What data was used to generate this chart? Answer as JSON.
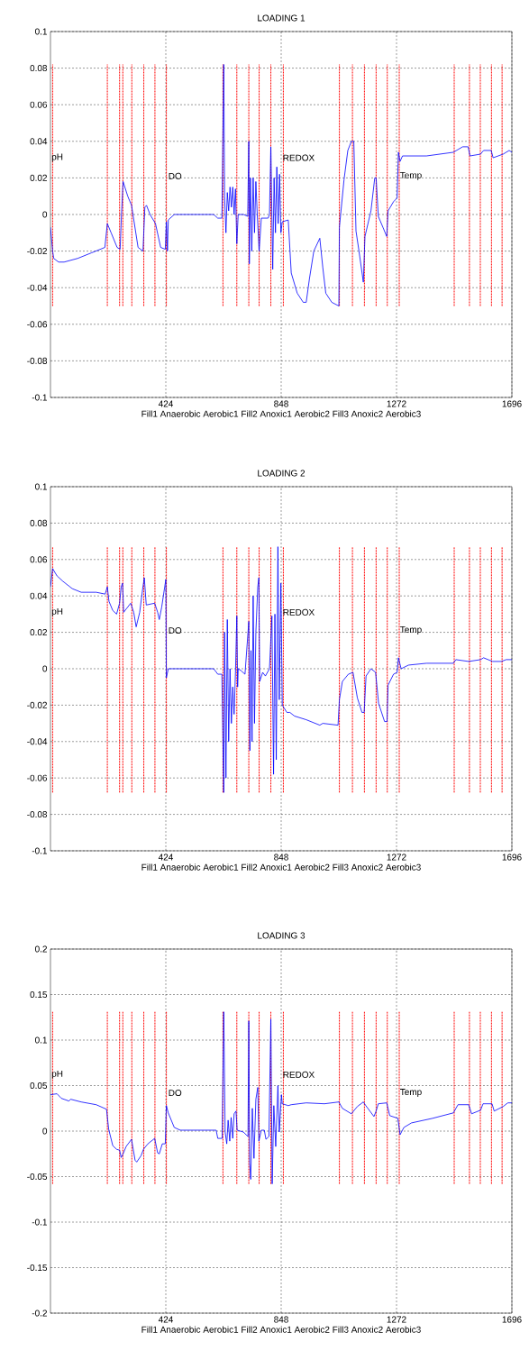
{
  "chart_data": [
    {
      "type": "line",
      "title": "LOADING 1",
      "xlabel": "Fill1 Anaerobic Aerobic1 Fill2 Anoxic1 Aerobic2 Fill3 Anoxic2 Aerobic3",
      "xlim": [
        0,
        1696
      ],
      "xticks": [
        424,
        848,
        1272,
        1696
      ],
      "ylim": [
        -0.1,
        0.1
      ],
      "yticks": [
        -0.1,
        -0.08,
        -0.06,
        -0.04,
        -0.02,
        0,
        0.02,
        0.04,
        0.06,
        0.08,
        0.1
      ],
      "grid": true,
      "series": [
        {
          "color": "#0000ff",
          "line_style": "solid",
          "x": [
            0,
            8,
            12,
            30,
            50,
            100,
            150,
            200,
            209,
            223,
            245,
            256,
            261,
            267,
            284,
            298,
            322,
            340,
            347,
            353,
            366,
            386,
            405,
            422,
            426,
            430,
            433,
            455,
            600,
            615,
            630,
            637,
            640,
            645,
            650,
            655,
            660,
            665,
            670,
            675,
            680,
            685,
            690,
            710,
            725,
            729,
            731,
            735,
            740,
            745,
            750,
            755,
            760,
            767,
            775,
            800,
            805,
            810,
            817,
            822,
            827,
            832,
            837,
            842,
            847,
            852,
            874,
            885,
            907,
            929,
            940,
            952,
            968,
            990,
            1001,
            1012,
            1034,
            1060,
            1062,
            1079,
            1093,
            1106,
            1115,
            1123,
            1134,
            1150,
            1156,
            1178,
            1192,
            1197,
            1205,
            1222,
            1236,
            1241,
            1261,
            1274,
            1279,
            1285,
            1294,
            1382,
            1481,
            1515,
            1535,
            1542,
            1581,
            1592,
            1620,
            1627,
            1664,
            1686,
            1696
          ],
          "values": [
            -0.007,
            -0.02,
            -0.024,
            -0.026,
            -0.026,
            -0.024,
            -0.021,
            -0.018,
            -0.005,
            -0.01,
            -0.018,
            -0.019,
            0,
            0.018,
            0.01,
            0.005,
            -0.018,
            -0.02,
            0.004,
            0.005,
            0,
            -0.005,
            -0.018,
            -0.019,
            -0.004,
            -0.02,
            -0.003,
            0,
            0,
            -0.002,
            -0.002,
            0.082,
            0.01,
            -0.01,
            0.012,
            0.002,
            0.015,
            0.004,
            0.015,
            0,
            0.014,
            -0.016,
            0,
            0,
            -0.001,
            0.04,
            -0.027,
            0.02,
            -0.02,
            0.02,
            -0.01,
            0.018,
            0,
            -0.02,
            -0.002,
            -0.002,
            0,
            0.037,
            -0.03,
            0.02,
            -0.01,
            0.026,
            -0.005,
            0.022,
            -0.01,
            -0.004,
            -0.003,
            -0.032,
            -0.043,
            -0.048,
            -0.048,
            -0.035,
            -0.02,
            -0.013,
            -0.029,
            -0.043,
            -0.048,
            -0.05,
            -0.007,
            0.019,
            0.035,
            0.04,
            0.04,
            -0.009,
            -0.02,
            -0.037,
            -0.012,
            0.002,
            0.02,
            0.02,
            -0.001,
            -0.007,
            -0.012,
            0.002,
            0.007,
            0.009,
            0.034,
            0.029,
            0.032,
            0.032,
            0.034,
            0.037,
            0.037,
            0.032,
            0.033,
            0.035,
            0.035,
            0.031,
            0.033,
            0.035,
            0.034
          ]
        }
      ],
      "ref_lines": [
        {
          "axis": "x",
          "value": 8,
          "color": "#ff0000",
          "line_style": "dotted"
        },
        {
          "axis": "x",
          "value": 209,
          "color": "#ff0000",
          "line_style": "dotted"
        },
        {
          "axis": "x",
          "value": 254,
          "color": "#ff0000",
          "line_style": "dotted"
        },
        {
          "axis": "x",
          "value": 266,
          "color": "#ff0000",
          "line_style": "dotted"
        },
        {
          "axis": "x",
          "value": 299,
          "color": "#ff0000",
          "line_style": "dotted"
        },
        {
          "axis": "x",
          "value": 343,
          "color": "#ff0000",
          "line_style": "dotted"
        },
        {
          "axis": "x",
          "value": 384,
          "color": "#ff0000",
          "line_style": "dotted"
        },
        {
          "axis": "x",
          "value": 426,
          "color": "#ff0000",
          "line_style": "dotted"
        },
        {
          "axis": "x",
          "value": 634,
          "color": "#ff0000",
          "line_style": "dotted"
        },
        {
          "axis": "x",
          "value": 685,
          "color": "#ff0000",
          "line_style": "dotted"
        },
        {
          "axis": "x",
          "value": 729,
          "color": "#ff0000",
          "line_style": "dotted"
        },
        {
          "axis": "x",
          "value": 767,
          "color": "#ff0000",
          "line_style": "dotted"
        },
        {
          "axis": "x",
          "value": 810,
          "color": "#ff0000",
          "line_style": "dotted"
        },
        {
          "axis": "x",
          "value": 856,
          "color": "#ff0000",
          "line_style": "dotted"
        },
        {
          "axis": "x",
          "value": 1062,
          "color": "#ff0000",
          "line_style": "dotted"
        },
        {
          "axis": "x",
          "value": 1110,
          "color": "#ff0000",
          "line_style": "dotted"
        },
        {
          "axis": "x",
          "value": 1154,
          "color": "#ff0000",
          "line_style": "dotted"
        },
        {
          "axis": "x",
          "value": 1197,
          "color": "#ff0000",
          "line_style": "dotted"
        },
        {
          "axis": "x",
          "value": 1238,
          "color": "#ff0000",
          "line_style": "dotted"
        },
        {
          "axis": "x",
          "value": 1282,
          "color": "#ff0000",
          "line_style": "dotted"
        },
        {
          "axis": "x",
          "value": 1484,
          "color": "#ff0000",
          "line_style": "dotted"
        },
        {
          "axis": "x",
          "value": 1540,
          "color": "#ff0000",
          "line_style": "dotted"
        },
        {
          "axis": "x",
          "value": 1580,
          "color": "#ff0000",
          "line_style": "dotted"
        },
        {
          "axis": "x",
          "value": 1621,
          "color": "#ff0000",
          "line_style": "dotted"
        },
        {
          "axis": "x",
          "value": 1660,
          "color": "#ff0000",
          "line_style": "dotted"
        }
      ],
      "annotations": [
        "pH",
        "DO",
        "REDOX",
        "Temp"
      ]
    },
    {
      "type": "line",
      "title": "LOADING 2",
      "xlabel": "Fill1 Anaerobic Aerobic1 Fill2 Anoxic1 Aerobic2 Fill3 Anoxic2 Aerobic3",
      "xlim": [
        0,
        1696
      ],
      "xticks": [
        424,
        848,
        1272,
        1696
      ],
      "ylim": [
        -0.1,
        0.1
      ],
      "yticks": [
        -0.1,
        -0.08,
        -0.06,
        -0.04,
        -0.02,
        0,
        0.02,
        0.04,
        0.06,
        0.08,
        0.1
      ],
      "grid": true,
      "series": [
        {
          "color": "#0000ff",
          "line_style": "solid",
          "x": [
            0,
            8,
            24,
            46,
            80,
            113,
            168,
            201,
            209,
            215,
            229,
            243,
            254,
            260,
            265,
            269,
            295,
            306,
            315,
            328,
            339,
            345,
            352,
            383,
            394,
            400,
            409,
            420,
            424,
            426,
            433,
            466,
            600,
            615,
            630,
            637,
            640,
            645,
            650,
            655,
            660,
            665,
            670,
            675,
            680,
            685,
            688,
            690,
            700,
            715,
            729,
            733,
            737,
            741,
            745,
            750,
            755,
            762,
            766,
            769,
            780,
            790,
            805,
            814,
            820,
            825,
            830,
            836,
            841,
            847,
            852,
            869,
            880,
            897,
            940,
            990,
            1001,
            1057,
            1062,
            1073,
            1095,
            1112,
            1128,
            1145,
            1153,
            1160,
            1178,
            1195,
            1206,
            1228,
            1237,
            1241,
            1261,
            1274,
            1279,
            1289,
            1316,
            1382,
            1481,
            1490,
            1537,
            1581,
            1592,
            1625,
            1658,
            1675,
            1696
          ],
          "values": [
            0.045,
            0.055,
            0.051,
            0.048,
            0.044,
            0.042,
            0.042,
            0.041,
            0.045,
            0.037,
            0.032,
            0.03,
            0.036,
            0.045,
            0.047,
            0.031,
            0.036,
            0.031,
            0.023,
            0.031,
            0.044,
            0.05,
            0.035,
            0.036,
            0.031,
            0.027,
            0.034,
            0.045,
            0.049,
            -0.005,
            0,
            0,
            0,
            -0.003,
            -0.003,
            -0.068,
            0.02,
            -0.06,
            0.027,
            -0.04,
            0,
            -0.03,
            -0.01,
            -0.025,
            -0.002,
            0.029,
            -0.01,
            0,
            -0.001,
            -0.003,
            0.026,
            -0.045,
            0.01,
            -0.04,
            0.04,
            -0.03,
            0.02,
            0.045,
            0.05,
            -0.007,
            -0.002,
            -0.004,
            0,
            0.029,
            -0.058,
            0.03,
            -0.05,
            0.067,
            -0.017,
            0.047,
            -0.02,
            -0.024,
            -0.024,
            -0.026,
            -0.028,
            -0.031,
            -0.03,
            -0.031,
            -0.017,
            -0.007,
            -0.003,
            -0.002,
            -0.016,
            -0.024,
            -0.024,
            -0.004,
            0,
            -0.002,
            -0.019,
            -0.029,
            -0.029,
            -0.009,
            -0.003,
            -0.002,
            0.006,
            0,
            0.002,
            0.003,
            0.003,
            0.005,
            0.004,
            0.005,
            0.006,
            0.004,
            0.004,
            0.005,
            0.005
          ]
        }
      ],
      "ref_lines": [
        {
          "axis": "x",
          "value": 8,
          "color": "#ff0000",
          "line_style": "dotted"
        },
        {
          "axis": "x",
          "value": 209,
          "color": "#ff0000",
          "line_style": "dotted"
        },
        {
          "axis": "x",
          "value": 254,
          "color": "#ff0000",
          "line_style": "dotted"
        },
        {
          "axis": "x",
          "value": 266,
          "color": "#ff0000",
          "line_style": "dotted"
        },
        {
          "axis": "x",
          "value": 299,
          "color": "#ff0000",
          "line_style": "dotted"
        },
        {
          "axis": "x",
          "value": 343,
          "color": "#ff0000",
          "line_style": "dotted"
        },
        {
          "axis": "x",
          "value": 384,
          "color": "#ff0000",
          "line_style": "dotted"
        },
        {
          "axis": "x",
          "value": 426,
          "color": "#ff0000",
          "line_style": "dotted"
        },
        {
          "axis": "x",
          "value": 634,
          "color": "#ff0000",
          "line_style": "dotted"
        },
        {
          "axis": "x",
          "value": 685,
          "color": "#ff0000",
          "line_style": "dotted"
        },
        {
          "axis": "x",
          "value": 729,
          "color": "#ff0000",
          "line_style": "dotted"
        },
        {
          "axis": "x",
          "value": 767,
          "color": "#ff0000",
          "line_style": "dotted"
        },
        {
          "axis": "x",
          "value": 810,
          "color": "#ff0000",
          "line_style": "dotted"
        },
        {
          "axis": "x",
          "value": 856,
          "color": "#ff0000",
          "line_style": "dotted"
        },
        {
          "axis": "x",
          "value": 1062,
          "color": "#ff0000",
          "line_style": "dotted"
        },
        {
          "axis": "x",
          "value": 1110,
          "color": "#ff0000",
          "line_style": "dotted"
        },
        {
          "axis": "x",
          "value": 1154,
          "color": "#ff0000",
          "line_style": "dotted"
        },
        {
          "axis": "x",
          "value": 1197,
          "color": "#ff0000",
          "line_style": "dotted"
        },
        {
          "axis": "x",
          "value": 1238,
          "color": "#ff0000",
          "line_style": "dotted"
        },
        {
          "axis": "x",
          "value": 1282,
          "color": "#ff0000",
          "line_style": "dotted"
        },
        {
          "axis": "x",
          "value": 1484,
          "color": "#ff0000",
          "line_style": "dotted"
        },
        {
          "axis": "x",
          "value": 1540,
          "color": "#ff0000",
          "line_style": "dotted"
        },
        {
          "axis": "x",
          "value": 1580,
          "color": "#ff0000",
          "line_style": "dotted"
        },
        {
          "axis": "x",
          "value": 1621,
          "color": "#ff0000",
          "line_style": "dotted"
        },
        {
          "axis": "x",
          "value": 1660,
          "color": "#ff0000",
          "line_style": "dotted"
        }
      ],
      "annotations": [
        "pH",
        "DO",
        "REDOX",
        "Temp"
      ]
    },
    {
      "type": "line",
      "title": "LOADING 3",
      "xlabel": "Fill1 Anaerobic Aerobic1 Fill2 Anoxic1 Aerobic2 Fill3 Anoxic2 Aerobic3",
      "xlim": [
        0,
        1696
      ],
      "xticks": [
        424,
        848,
        1272,
        1696
      ],
      "ylim": [
        -0.2,
        0.2
      ],
      "yticks": [
        -0.2,
        -0.15,
        -0.1,
        -0.05,
        0,
        0.05,
        0.1,
        0.15,
        0.2
      ],
      "grid": true,
      "series": [
        {
          "color": "#0000ff",
          "line_style": "solid",
          "x": [
            0,
            24,
            40,
            68,
            74,
            113,
            168,
            206,
            214,
            229,
            243,
            254,
            260,
            267,
            278,
            298,
            311,
            317,
            333,
            342,
            358,
            383,
            394,
            400,
            411,
            422,
            426,
            433,
            455,
            477,
            609,
            615,
            631,
            637,
            642,
            648,
            653,
            659,
            664,
            670,
            675,
            682,
            686,
            709,
            726,
            729,
            732,
            736,
            742,
            748,
            755,
            762,
            766,
            775,
            786,
            792,
            803,
            810,
            815,
            821,
            828,
            836,
            841,
            849,
            852,
            874,
            885,
            940,
            1007,
            1060,
            1073,
            1106,
            1128,
            1150,
            1159,
            1189,
            1197,
            1205,
            1236,
            1247,
            1277,
            1285,
            1299,
            1327,
            1404,
            1481,
            1498,
            1537,
            1548,
            1581,
            1590,
            1623,
            1631,
            1664,
            1681,
            1696
          ],
          "values": [
            0.04,
            0.041,
            0.036,
            0.033,
            0.035,
            0.032,
            0.029,
            0.024,
            0.002,
            -0.016,
            -0.02,
            -0.021,
            -0.029,
            -0.025,
            -0.017,
            -0.009,
            -0.032,
            -0.034,
            -0.027,
            -0.02,
            -0.014,
            -0.008,
            -0.024,
            -0.025,
            -0.014,
            -0.014,
            0.028,
            0.02,
            0.004,
            0.001,
            0.001,
            -0.008,
            -0.008,
            0.131,
            -0.001,
            -0.014,
            0.012,
            -0.011,
            0.015,
            -0.008,
            0.019,
            0.022,
            0.001,
            -0.001,
            -0.006,
            0.121,
            -0.035,
            -0.053,
            0.025,
            -0.03,
            0.035,
            0.048,
            -0.011,
            0.001,
            0.001,
            -0.009,
            -0.006,
            0.123,
            -0.058,
            0.028,
            -0.017,
            0.05,
            -0.001,
            0.04,
            0.03,
            0.028,
            0.029,
            0.031,
            0.03,
            0.032,
            0.025,
            0.019,
            0.027,
            0.032,
            0.028,
            0.016,
            0.022,
            0.03,
            0.031,
            0.017,
            0.014,
            -0.004,
            0.004,
            0.009,
            0.014,
            0.02,
            0.029,
            0.029,
            0.019,
            0.023,
            0.03,
            0.03,
            0.022,
            0.027,
            0.031,
            0.031
          ]
        }
      ],
      "ref_lines": [
        {
          "axis": "x",
          "value": 8,
          "color": "#ff0000",
          "line_style": "dotted"
        },
        {
          "axis": "x",
          "value": 209,
          "color": "#ff0000",
          "line_style": "dotted"
        },
        {
          "axis": "x",
          "value": 254,
          "color": "#ff0000",
          "line_style": "dotted"
        },
        {
          "axis": "x",
          "value": 266,
          "color": "#ff0000",
          "line_style": "dotted"
        },
        {
          "axis": "x",
          "value": 299,
          "color": "#ff0000",
          "line_style": "dotted"
        },
        {
          "axis": "x",
          "value": 343,
          "color": "#ff0000",
          "line_style": "dotted"
        },
        {
          "axis": "x",
          "value": 384,
          "color": "#ff0000",
          "line_style": "dotted"
        },
        {
          "axis": "x",
          "value": 426,
          "color": "#ff0000",
          "line_style": "dotted"
        },
        {
          "axis": "x",
          "value": 634,
          "color": "#ff0000",
          "line_style": "dotted"
        },
        {
          "axis": "x",
          "value": 685,
          "color": "#ff0000",
          "line_style": "dotted"
        },
        {
          "axis": "x",
          "value": 729,
          "color": "#ff0000",
          "line_style": "dotted"
        },
        {
          "axis": "x",
          "value": 767,
          "color": "#ff0000",
          "line_style": "dotted"
        },
        {
          "axis": "x",
          "value": 810,
          "color": "#ff0000",
          "line_style": "dotted"
        },
        {
          "axis": "x",
          "value": 856,
          "color": "#ff0000",
          "line_style": "dotted"
        },
        {
          "axis": "x",
          "value": 1062,
          "color": "#ff0000",
          "line_style": "dotted"
        },
        {
          "axis": "x",
          "value": 1110,
          "color": "#ff0000",
          "line_style": "dotted"
        },
        {
          "axis": "x",
          "value": 1154,
          "color": "#ff0000",
          "line_style": "dotted"
        },
        {
          "axis": "x",
          "value": 1197,
          "color": "#ff0000",
          "line_style": "dotted"
        },
        {
          "axis": "x",
          "value": 1238,
          "color": "#ff0000",
          "line_style": "dotted"
        },
        {
          "axis": "x",
          "value": 1282,
          "color": "#ff0000",
          "line_style": "dotted"
        },
        {
          "axis": "x",
          "value": 1484,
          "color": "#ff0000",
          "line_style": "dotted"
        },
        {
          "axis": "x",
          "value": 1540,
          "color": "#ff0000",
          "line_style": "dotted"
        },
        {
          "axis": "x",
          "value": 1580,
          "color": "#ff0000",
          "line_style": "dotted"
        },
        {
          "axis": "x",
          "value": 1621,
          "color": "#ff0000",
          "line_style": "dotted"
        },
        {
          "axis": "x",
          "value": 1660,
          "color": "#ff0000",
          "line_style": "dotted"
        }
      ],
      "annotations": [
        "pH",
        "DO",
        "REDOX",
        "Temp"
      ]
    }
  ]
}
